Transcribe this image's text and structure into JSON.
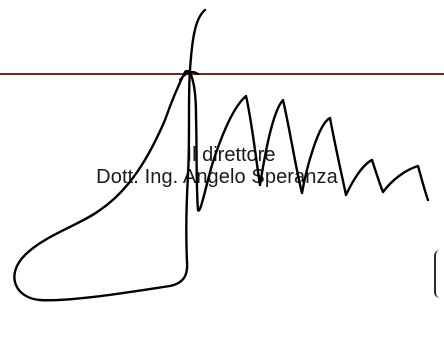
{
  "document": {
    "signatory_title": "Il direttore",
    "signatory_name": "Dott. Ing. Angelo Speranza"
  },
  "colors": {
    "rule": "#7a2a10",
    "ink": "#000000",
    "text": "#1a1a1a"
  }
}
